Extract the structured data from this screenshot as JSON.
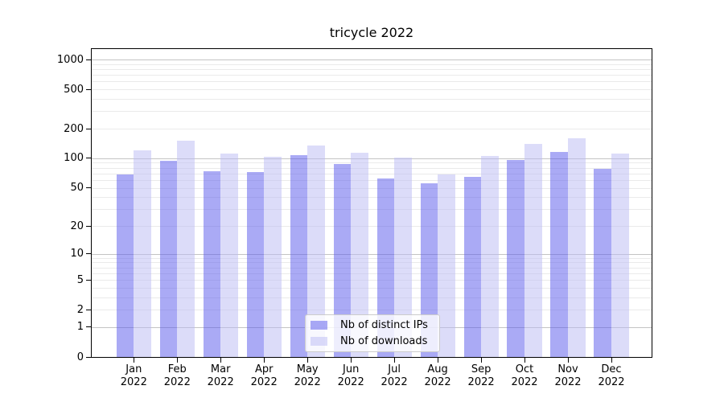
{
  "chart_data": {
    "type": "bar",
    "title": "tricycle 2022",
    "categories": [
      "Jan",
      "Feb",
      "Mar",
      "Apr",
      "May",
      "Jun",
      "Jul",
      "Aug",
      "Sep",
      "Oct",
      "Nov",
      "Dec"
    ],
    "x_year_suffix": "2022",
    "series": [
      {
        "name": "Nb of distinct IPs",
        "color": "rgba(85,85,235,0.5)",
        "values": [
          69,
          95,
          74,
          73,
          107,
          87,
          62,
          55,
          65,
          96,
          117,
          78
        ]
      },
      {
        "name": "Nb of downloads",
        "color": "rgba(185,185,243,0.5)",
        "values": [
          121,
          150,
          112,
          104,
          135,
          114,
          101,
          68,
          106,
          140,
          161,
          112
        ]
      }
    ],
    "y_scale": "log1p",
    "ylim": [
      0,
      1276
    ],
    "y_ticks": [
      0,
      1,
      2,
      5,
      10,
      20,
      50,
      100,
      200,
      500,
      1000
    ],
    "y_major_gridlines": [
      1,
      10,
      100,
      1000
    ],
    "y_minor_gridlines": [
      2,
      3,
      4,
      5,
      6,
      7,
      8,
      9,
      20,
      30,
      40,
      50,
      60,
      70,
      80,
      90,
      200,
      300,
      400,
      500,
      600,
      700,
      800,
      900
    ],
    "grid": "on",
    "legend_position": "lower-center-inside",
    "colors": {
      "bar_distinct_ips": "rgba(85,85,235,0.5)",
      "bar_downloads": "rgba(185,185,243,0.5)",
      "major_grid": "#c4c4c4",
      "minor_grid": "#eaeaea",
      "spine": "#000000",
      "legend_border": "#cccccc",
      "background": "#ffffff"
    }
  }
}
